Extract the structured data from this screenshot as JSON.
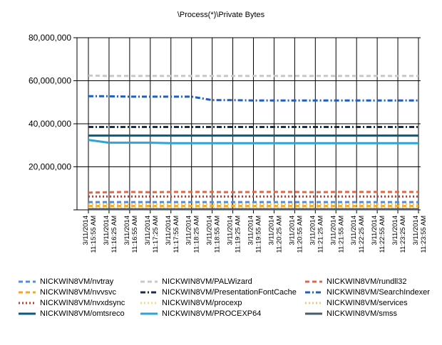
{
  "chart_data": {
    "type": "line",
    "title": "\\Process(*)\\Private Bytes",
    "xlabel": "",
    "ylabel": "",
    "ylim": [
      0,
      80000000
    ],
    "yticks": [
      {
        "value": 20000000,
        "label": "20,000,000"
      },
      {
        "value": 40000000,
        "label": "40,000,000"
      },
      {
        "value": 60000000,
        "label": "60,000,000"
      },
      {
        "value": 80000000,
        "label": "80,000,000"
      }
    ],
    "grid": true,
    "legend_position": "bottom",
    "categories": [
      "3/11/2014 11:15:55 AM",
      "3/11/2014 11:16:25 AM",
      "3/11/2014 11:16:55 AM",
      "3/11/2014 11:17:25 AM",
      "3/11/2014 11:17:55 AM",
      "3/11/2014 11:18:25 AM",
      "3/11/2014 11:18:55 AM",
      "3/11/2014 11:19:25 AM",
      "3/11/2014 11:19:55 AM",
      "3/11/2014 11:20:25 AM",
      "3/11/2014 11:20:55 AM",
      "3/11/2014 11:21:25 AM",
      "3/11/2014 11:21:55 AM",
      "3/11/2014 11:22:25 AM",
      "3/11/2014 11:22:55 AM",
      "3/11/2014 11:23:25 AM",
      "3/11/2014 11:23:55 AM"
    ],
    "series": [
      {
        "name": "NICKWIN8VM/nvtray",
        "color": "#4a90e2",
        "style": "dash",
        "values": [
          3600000,
          3600000,
          3600000,
          3600000,
          3600000,
          3600000,
          3600000,
          3600000,
          3600000,
          3600000,
          3600000,
          3600000,
          3600000,
          3600000,
          3600000,
          3600000,
          3600000
        ]
      },
      {
        "name": "NICKWIN8VM/nvvsvc",
        "color": "#f5a623",
        "style": "dash",
        "values": [
          1800000,
          1800000,
          1800000,
          1800000,
          1800000,
          1800000,
          1800000,
          1800000,
          1800000,
          1800000,
          1800000,
          1800000,
          1800000,
          1800000,
          1800000,
          1800000,
          1800000
        ]
      },
      {
        "name": "NICKWIN8VM/nvxdsync",
        "color": "#c0392b",
        "style": "dot",
        "values": [
          6200000,
          6200000,
          6200000,
          6200000,
          6200000,
          6200000,
          6200000,
          6200000,
          6200000,
          6200000,
          6200000,
          6200000,
          6200000,
          6200000,
          6200000,
          6200000,
          6200000
        ]
      },
      {
        "name": "NICKWIN8VM/omtsreco",
        "color": "#0b5a7a",
        "style": "solid",
        "values": [
          34500000,
          34500000,
          34500000,
          34500000,
          34500000,
          34500000,
          34500000,
          34500000,
          34500000,
          34500000,
          34500000,
          34500000,
          34500000,
          34500000,
          34500000,
          34500000,
          34500000
        ]
      },
      {
        "name": "NICKWIN8VM/PALWizard",
        "color": "#c8c8c8",
        "style": "dash",
        "values": [
          62400000,
          62200000,
          62200000,
          62200000,
          62200000,
          62200000,
          62200000,
          62200000,
          62200000,
          62200000,
          62200000,
          62200000,
          62200000,
          62200000,
          62200000,
          62200000,
          62200000
        ]
      },
      {
        "name": "NICKWIN8VM/PresentationFontCache",
        "color": "#1c2e4a",
        "style": "dashdot",
        "values": [
          38500000,
          38500000,
          38500000,
          38500000,
          38500000,
          38500000,
          38500000,
          38500000,
          38500000,
          38500000,
          38500000,
          38500000,
          38500000,
          38500000,
          38500000,
          38500000,
          38500000
        ]
      },
      {
        "name": "NICKWIN8VM/procexp",
        "color": "#f7d98b",
        "style": "dot",
        "values": [
          900000,
          900000,
          900000,
          900000,
          900000,
          900000,
          900000,
          900000,
          900000,
          900000,
          900000,
          900000,
          900000,
          900000,
          900000,
          900000,
          900000
        ]
      },
      {
        "name": "NICKWIN8VM/PROCEXP64",
        "color": "#2ea3d6",
        "style": "solid",
        "values": [
          32500000,
          31200000,
          31200000,
          31200000,
          31000000,
          31000000,
          31000000,
          31000000,
          31000000,
          31000000,
          31000000,
          31000000,
          31000000,
          31000000,
          31000000,
          31000000,
          31000000
        ]
      },
      {
        "name": "NICKWIN8VM/rundll32",
        "color": "#e06848",
        "style": "dash",
        "values": [
          8000000,
          8200000,
          8300000,
          8200000,
          8300000,
          8300000,
          8300000,
          8200000,
          8300000,
          8300000,
          8300000,
          8200000,
          8300000,
          8300000,
          8300000,
          8300000,
          8300000
        ]
      },
      {
        "name": "NICKWIN8VM/SearchIndexer",
        "color": "#1f5fbf",
        "style": "dashdot",
        "values": [
          52800000,
          52800000,
          52600000,
          52600000,
          52600000,
          52600000,
          51000000,
          51000000,
          50800000,
          50800000,
          50800000,
          50800000,
          50800000,
          50800000,
          50800000,
          50800000,
          50800000
        ]
      },
      {
        "name": "NICKWIN8VM/services",
        "color": "#f5c97a",
        "style": "dot",
        "values": [
          2600000,
          2600000,
          2600000,
          2600000,
          2600000,
          2600000,
          2600000,
          2600000,
          2600000,
          2600000,
          2600000,
          2600000,
          2600000,
          2600000,
          2600000,
          2600000,
          2600000
        ]
      },
      {
        "name": "NICKWIN8VM/smss",
        "color": "#4a5a6a",
        "style": "solid",
        "values": [
          300000,
          300000,
          300000,
          300000,
          300000,
          300000,
          300000,
          300000,
          300000,
          300000,
          300000,
          300000,
          300000,
          300000,
          300000,
          300000,
          300000
        ]
      }
    ]
  }
}
